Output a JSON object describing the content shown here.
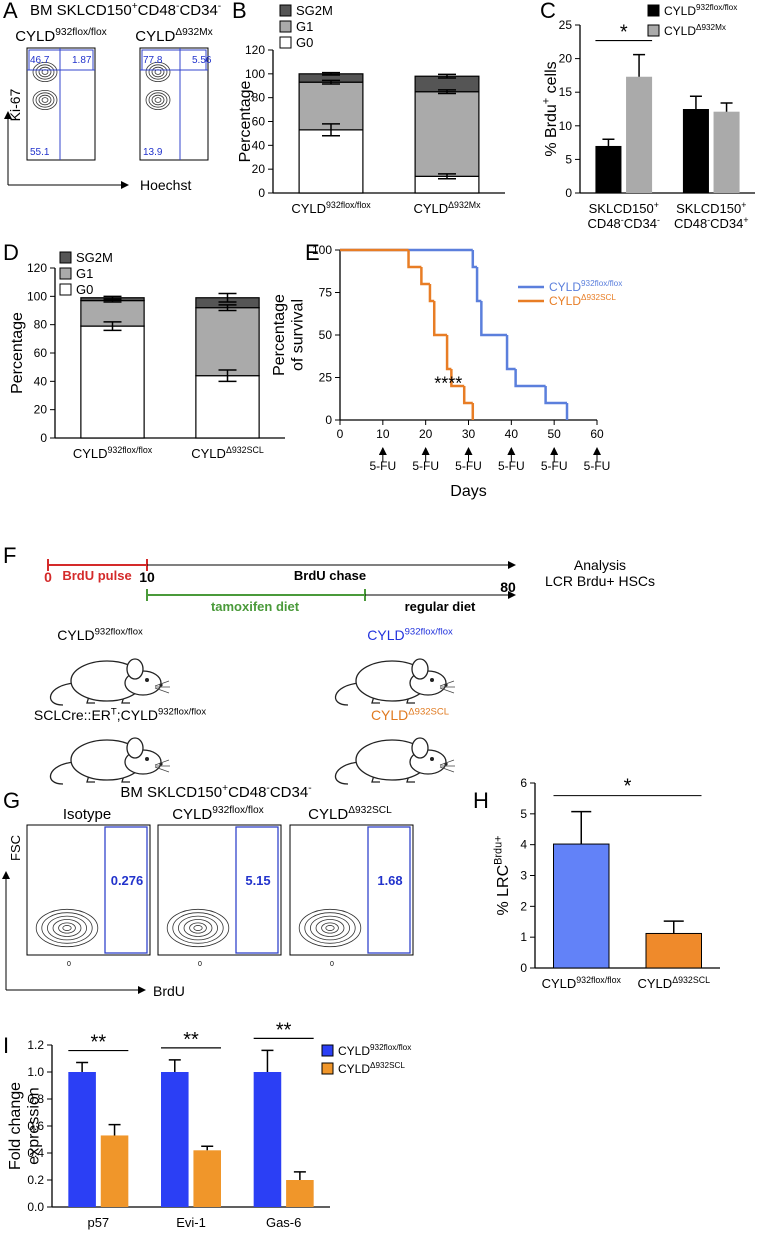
{
  "flow_A": {
    "label": "A",
    "title": [
      {
        "t": "BM SKLCD150"
      },
      {
        "sup": "+"
      },
      {
        "t": "CD48"
      },
      {
        "sup": "-"
      },
      {
        "t": "CD34"
      },
      {
        "sup": "-"
      }
    ],
    "ylabel": "Ki-67",
    "xlabel": "Hoechst",
    "plots": [
      {
        "title": [
          {
            "t": "CYLD"
          },
          {
            "sup": "932flox/flox"
          }
        ],
        "upper_left": 46.7,
        "upper_right": 1.87,
        "lower_left": 55.1
      },
      {
        "title": [
          {
            "t": "CYLD"
          },
          {
            "sup": "Δ932Mx"
          }
        ],
        "upper_left": 77.8,
        "upper_right": 5.56,
        "lower_left": 13.9
      }
    ]
  },
  "chart_data": [
    {
      "label": "B",
      "type": "stacked_bar",
      "ylabel": "Percentage",
      "categories": [
        [
          {
            "t": "CYLD"
          },
          {
            "sup": "932flox/flox"
          }
        ],
        [
          {
            "t": "CYLD"
          },
          {
            "sup": "Δ932Mx"
          }
        ]
      ],
      "series": [
        {
          "name": "G0",
          "color": "#ffffff",
          "values": [
            53,
            14
          ],
          "errors": [
            5,
            2
          ]
        },
        {
          "name": "G1",
          "color": "#aaaaaa",
          "values": [
            40,
            71
          ],
          "errors": [
            1.5,
            1.5
          ]
        },
        {
          "name": "SG2M",
          "color": "#555555",
          "values": [
            7,
            13
          ],
          "errors": [
            1,
            1.5
          ]
        }
      ],
      "ylim": [
        0,
        120
      ],
      "yticks": [
        0,
        20,
        40,
        60,
        80,
        100,
        120
      ],
      "legend": "top-left"
    },
    {
      "label": "C",
      "type": "grouped_bar",
      "ylabel": [
        {
          "t": "% Brdu"
        },
        {
          "sup": "+"
        },
        {
          "t": " cells"
        }
      ],
      "categories": [
        [
          [
            {
              "t": "SKLCD150"
            },
            {
              "sup": "+"
            }
          ],
          [
            {
              "t": "CD48"
            },
            {
              "sup": "-"
            },
            {
              "t": "CD34"
            },
            {
              "sup": "-"
            }
          ]
        ],
        [
          [
            {
              "t": "SKLCD150"
            },
            {
              "sup": "+"
            }
          ],
          [
            {
              "t": "CD48"
            },
            {
              "sup": "-"
            },
            {
              "t": "CD34"
            },
            {
              "sup": "+"
            }
          ]
        ]
      ],
      "series": [
        {
          "name": [
            {
              "t": "CYLD"
            },
            {
              "sup": "932flox/flox"
            }
          ],
          "color": "#000000",
          "values": [
            7,
            12.5
          ],
          "errors": [
            1,
            1.9
          ]
        },
        {
          "name": [
            {
              "t": "CYLD"
            },
            {
              "sup": "Δ932Mx"
            }
          ],
          "color": "#aaaaaa",
          "values": [
            17.3,
            12.1
          ],
          "errors": [
            3.3,
            1.3
          ]
        }
      ],
      "significance": [
        "*",
        null
      ],
      "ylim": [
        0,
        25
      ],
      "yticks": [
        0,
        5,
        10,
        15,
        20,
        25
      ],
      "legend": "top-right"
    },
    {
      "label": "D",
      "type": "stacked_bar",
      "ylabel": "Percentage",
      "categories": [
        [
          {
            "t": "CYLD"
          },
          {
            "sup": "932flox/flox"
          }
        ],
        [
          {
            "t": "CYLD"
          },
          {
            "sup": "Δ932SCL"
          }
        ]
      ],
      "series": [
        {
          "name": "G0",
          "color": "#ffffff",
          "values": [
            79,
            44
          ],
          "errors": [
            3,
            4
          ]
        },
        {
          "name": "G1",
          "color": "#aaaaaa",
          "values": [
            18,
            48
          ],
          "errors": [
            1,
            2
          ]
        },
        {
          "name": "SG2M",
          "color": "#555555",
          "values": [
            2,
            7
          ],
          "errors": [
            1,
            3
          ]
        }
      ],
      "ylim": [
        0,
        120
      ],
      "yticks": [
        0,
        20,
        40,
        60,
        80,
        100,
        120
      ],
      "legend": "top-left"
    },
    {
      "label": "E",
      "type": "line",
      "step": true,
      "ylabel": [
        "Percentage",
        "of survival"
      ],
      "xlabel": "Days",
      "series": [
        {
          "name": [
            {
              "t": "CYLD"
            },
            {
              "sup": "932flox/flox"
            }
          ],
          "color": "#5b7fdc",
          "x": [
            0,
            31,
            32,
            33,
            39,
            41,
            48,
            53
          ],
          "values": [
            100,
            90,
            70,
            50,
            30,
            20,
            10,
            0
          ]
        },
        {
          "name": [
            {
              "t": "CYLD"
            },
            {
              "sup": "Δ932SCL"
            }
          ],
          "color": "#e87d25",
          "x": [
            0,
            16,
            19,
            21,
            22,
            25,
            26,
            29,
            31
          ],
          "values": [
            100,
            90,
            80,
            70,
            50,
            30,
            20,
            10,
            0
          ]
        }
      ],
      "annotation": "****",
      "treatment": {
        "label": "5-FU",
        "days": [
          10,
          20,
          30,
          40,
          50,
          60
        ]
      },
      "xlim": [
        0,
        60
      ],
      "xticks": [
        0,
        10,
        20,
        30,
        40,
        50,
        60
      ],
      "ylim": [
        0,
        100
      ],
      "yticks": [
        0,
        25,
        50,
        75,
        100
      ],
      "legend": "top-right"
    },
    {
      "label": "H",
      "type": "bar",
      "ylabel": [
        {
          "t": "% LRC"
        },
        {
          "sup": "Brdu+"
        }
      ],
      "categories": [
        [
          {
            "t": "CYLD"
          },
          {
            "sup": "932flox/flox"
          }
        ],
        [
          {
            "t": "CYLD"
          },
          {
            "sup": "Δ932SCL"
          }
        ]
      ],
      "values": [
        4.02,
        1.12
      ],
      "errors": [
        1.05,
        0.4
      ],
      "colors": [
        "#6282f8",
        "#ef8a2b"
      ],
      "significance": "*",
      "ylim": [
        0,
        6
      ],
      "yticks": [
        0,
        1,
        2,
        3,
        4,
        5,
        6
      ]
    },
    {
      "label": "I",
      "type": "grouped_bar",
      "ylabel": [
        "Fold change",
        "expression"
      ],
      "categories": [
        "p57",
        "Evi-1",
        "Gas-6"
      ],
      "series": [
        {
          "name": [
            {
              "t": "CYLD"
            },
            {
              "sup": "932flox/flox"
            }
          ],
          "color": "#2b3ff5",
          "values": [
            1.0,
            1.0,
            1.0
          ],
          "errors": [
            0.07,
            0.09,
            0.16
          ]
        },
        {
          "name": [
            {
              "t": "CYLD"
            },
            {
              "sup": "Δ932SCL"
            }
          ],
          "color": "#f0962a",
          "values": [
            0.53,
            0.42,
            0.2
          ],
          "errors": [
            0.08,
            0.03,
            0.06
          ]
        }
      ],
      "significance": [
        "**",
        "**",
        "**"
      ],
      "ylim": [
        0,
        1.2
      ],
      "yticks": [
        {
          "value": 0,
          "label": "0.0"
        },
        0.2,
        0.4,
        0.6,
        0.8,
        {
          "value": 1,
          "label": "1.0"
        },
        1.2
      ],
      "legend": "top-right"
    }
  ],
  "timeline_F": {
    "label": "F",
    "pulse_start": 0,
    "pulse_label": "BrdU pulse",
    "pulse_end": 10,
    "chase_label": "BrdU chase",
    "end_day": 80,
    "analysis": [
      "Analysis",
      "LCR Brdu+ HSCs"
    ],
    "diet_label": "tamoxifen diet",
    "regular_label": "regular diet",
    "pulse_color": "#d42a2a",
    "diet_color": "#4a9a3a",
    "mice": [
      {
        "label": [
          {
            "t": "CYLD"
          },
          {
            "sup": "932flox/flox"
          }
        ],
        "color": "#000000"
      },
      {
        "label": [
          {
            "t": "SCLCre::ER"
          },
          {
            "sup": "T"
          },
          {
            "t": ";CYLD"
          },
          {
            "sup": "932flox/flox"
          }
        ],
        "color": "#000000"
      },
      {
        "label": [
          {
            "t": "CYLD"
          },
          {
            "sup": "932flox/flox"
          }
        ],
        "color": "#2233dd"
      },
      {
        "label": [
          {
            "t": "CYLD"
          },
          {
            "sup": "Δ932SCL"
          }
        ],
        "color": "#e07a20"
      }
    ]
  },
  "flow_G": {
    "label": "G",
    "title": [
      {
        "t": "BM SKLCD150"
      },
      {
        "sup": "+"
      },
      {
        "t": "CD48"
      },
      {
        "sup": "-"
      },
      {
        "t": "CD34"
      },
      {
        "sup": "-"
      }
    ],
    "ylabel": "FSC",
    "xlabel": "BrdU",
    "axis_zero": 0,
    "plots": [
      {
        "title": "Isotype",
        "gate": 0.276
      },
      {
        "title": [
          {
            "t": "CYLD"
          },
          {
            "sup": "932flox/flox"
          }
        ],
        "gate": 5.15
      },
      {
        "title": [
          {
            "t": "CYLD"
          },
          {
            "sup": "Δ932SCL"
          }
        ],
        "gate": 1.68
      }
    ]
  }
}
